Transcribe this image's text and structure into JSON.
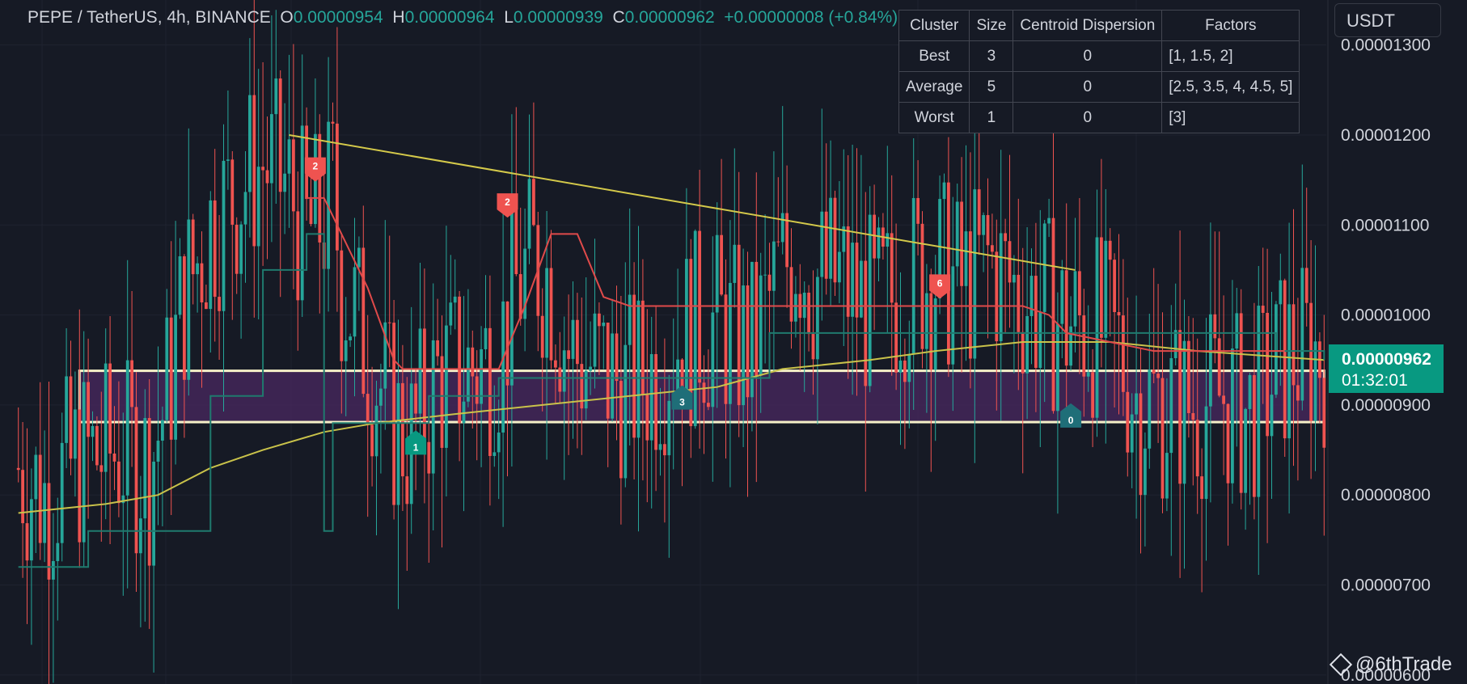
{
  "legend": {
    "symbol": "PEPE / TetherUS, 4h, BINANCE",
    "o_label": "O",
    "o_value": "0.00000954",
    "h_label": "H",
    "h_value": "0.00000964",
    "l_label": "L",
    "l_value": "0.00000939",
    "c_label": "C",
    "c_value": "0.00000962",
    "change": "+0.00000008 (+0.84%)"
  },
  "table": {
    "headers": [
      "Cluster",
      "Size",
      "Centroid Dispersion",
      "Factors"
    ],
    "rows": [
      [
        "Best",
        "3",
        "0",
        "[1, 1.5, 2]"
      ],
      [
        "Average",
        "5",
        "0",
        "[2.5, 3.5, 4, 4.5, 5]"
      ],
      [
        "Worst",
        "1",
        "0",
        "[3]"
      ]
    ]
  },
  "currency": "USDT",
  "price_tag": {
    "price": "0.00000962",
    "countdown": "01:32:01"
  },
  "watermark": "@6thTrade",
  "colors": {
    "background": "#161a25",
    "up": "#26a69a",
    "down": "#ef5350",
    "trend_line": "#d4c94a",
    "zone_fill": "#4a2860",
    "zone_border": "#f5f0c8",
    "ma_line": "#c9c24a",
    "supertrend_bear": "#e04a4a",
    "supertrend_bull": "#1f7a6e"
  },
  "chart_data": {
    "type": "candlestick",
    "y_axis": {
      "ticks": [
        "0.00001300",
        "0.00001200",
        "0.00001100",
        "0.00001000",
        "0.00000900",
        "0.00000800",
        "0.00000700",
        "0.00000600"
      ],
      "tick_values": [
        1.3e-05,
        1.2e-05,
        1.1e-05,
        1e-05,
        9e-06,
        8e-06,
        7e-06,
        6e-06
      ],
      "ylim": [
        5.9e-06,
        1.35e-05
      ]
    },
    "grid": true,
    "bars": 300,
    "close_path": [
      [
        0,
        8.3e-06
      ],
      [
        6,
        8e-06
      ],
      [
        14,
        8.4e-06
      ],
      [
        24,
        8.5e-06
      ],
      [
        30,
        8.3e-06
      ],
      [
        34,
        9.1e-06
      ],
      [
        38,
        1.02e-05
      ],
      [
        44,
        1.1e-05
      ],
      [
        52,
        1.15e-05
      ],
      [
        56,
        1.17e-05
      ],
      [
        62,
        1.14e-05
      ],
      [
        66,
        1.09e-05
      ],
      [
        70,
        1.11e-05
      ],
      [
        72,
        1.14e-05
      ],
      [
        74,
        1.04e-05
      ],
      [
        80,
        9.6e-06
      ],
      [
        86,
        8.8e-06
      ],
      [
        90,
        8.6e-06
      ],
      [
        96,
        9.3e-06
      ],
      [
        104,
        9.4e-06
      ],
      [
        110,
        9.6e-06
      ],
      [
        114,
        1.03e-05
      ],
      [
        118,
        1.06e-05
      ],
      [
        122,
        1.04e-05
      ],
      [
        126,
        9.6e-06
      ],
      [
        132,
        9.4e-06
      ],
      [
        140,
        9.2e-06
      ],
      [
        146,
        9.4e-06
      ],
      [
        152,
        9.8e-06
      ],
      [
        160,
        9.9e-06
      ],
      [
        168,
        9.6e-06
      ],
      [
        174,
        1.04e-05
      ],
      [
        178,
        1.08e-05
      ],
      [
        182,
        1.04e-05
      ],
      [
        188,
        1.04e-05
      ],
      [
        196,
        1e-05
      ],
      [
        204,
        1.04e-05
      ],
      [
        210,
        1.05e-05
      ],
      [
        216,
        1.03e-05
      ],
      [
        222,
        1.06e-05
      ],
      [
        228,
        1.03e-05
      ],
      [
        234,
        1.01e-05
      ],
      [
        240,
        9.9e-06
      ],
      [
        246,
        9.9e-06
      ],
      [
        252,
        9.6e-06
      ],
      [
        256,
        9.1e-06
      ],
      [
        262,
        9e-06
      ],
      [
        270,
        9e-06
      ],
      [
        276,
        9.1e-06
      ],
      [
        282,
        8.9e-06
      ],
      [
        286,
        9.2e-06
      ],
      [
        290,
        9.5e-06
      ],
      [
        294,
        9.6e-06
      ],
      [
        299,
        9.6e-06
      ]
    ],
    "trend_line": {
      "from": [
        62,
        1.2e-05
      ],
      "to": [
        242,
        1.05e-05
      ]
    },
    "zone": {
      "from_bar": 14,
      "to_bar": 299,
      "top": 9.38e-06,
      "bottom": 8.81e-06
    },
    "moving_average": [
      [
        0,
        7.8e-06
      ],
      [
        20,
        7.9e-06
      ],
      [
        32,
        8e-06
      ],
      [
        44,
        8.3e-06
      ],
      [
        56,
        8.5e-06
      ],
      [
        70,
        8.7e-06
      ],
      [
        82,
        8.8e-06
      ],
      [
        100,
        8.9e-06
      ],
      [
        120,
        9e-06
      ],
      [
        140,
        9.1e-06
      ],
      [
        160,
        9.2e-06
      ],
      [
        175,
        9.4e-06
      ],
      [
        195,
        9.5e-06
      ],
      [
        210,
        9.6e-06
      ],
      [
        230,
        9.7e-06
      ],
      [
        250,
        9.7e-06
      ],
      [
        270,
        9.6e-06
      ],
      [
        299,
        9.5e-06
      ]
    ],
    "supertrend_bear": [
      [
        66,
        1.13e-05
      ],
      [
        70,
        1.13e-05
      ],
      [
        80,
        1.03e-05
      ],
      [
        86,
        9.5e-06
      ],
      [
        88,
        9.4e-06
      ],
      [
        100,
        9.4e-06
      ],
      [
        110,
        9.4e-06
      ],
      [
        116,
        1.01e-05
      ],
      [
        122,
        1.09e-05
      ],
      [
        128,
        1.09e-05
      ],
      [
        134,
        1.02e-05
      ],
      [
        140,
        1.01e-05
      ],
      [
        152,
        1.01e-05
      ],
      [
        160,
        1.01e-05
      ],
      [
        220,
        1.01e-05
      ],
      [
        224,
        1.01e-05
      ],
      [
        230,
        1.01e-05
      ],
      [
        236,
        1e-05
      ],
      [
        240,
        9.8e-06
      ],
      [
        250,
        9.7e-06
      ],
      [
        260,
        9.6e-06
      ],
      [
        270,
        9.6e-06
      ],
      [
        290,
        9.6e-06
      ]
    ],
    "supertrend_bull": [
      [
        0,
        7.2e-06
      ],
      [
        14,
        7.2e-06
      ],
      [
        16,
        7.6e-06
      ],
      [
        40,
        7.6e-06
      ],
      [
        44,
        9.1e-06
      ],
      [
        56,
        1.05e-05
      ],
      [
        66,
        1.09e-05
      ],
      [
        70,
        7.6e-06
      ],
      [
        72,
        8.8e-06
      ],
      [
        88,
        8.8e-06
      ],
      [
        94,
        9.1e-06
      ],
      [
        110,
        9.3e-06
      ],
      [
        160,
        9.3e-06
      ],
      [
        172,
        9.8e-06
      ],
      [
        220,
        9.8e-06
      ],
      [
        244,
        9.8e-06
      ],
      [
        288,
        9.6e-06
      ],
      [
        299,
        9.5e-06
      ]
    ],
    "markers": [
      {
        "label": "2",
        "bar": 68,
        "price": 1.15e-05,
        "color": "#ef5350",
        "dir": "down"
      },
      {
        "label": "2",
        "bar": 112,
        "price": 1.11e-05,
        "color": "#ef5350",
        "dir": "down"
      },
      {
        "label": "6",
        "bar": 211,
        "price": 1.02e-05,
        "color": "#ef5350",
        "dir": "down"
      },
      {
        "label": "1",
        "bar": 91,
        "price": 8.7e-06,
        "color": "#089981",
        "dir": "up"
      },
      {
        "label": "3",
        "bar": 152,
        "price": 9.2e-06,
        "color": "#1f6e78",
        "dir": "up"
      },
      {
        "label": "0",
        "bar": 241,
        "price": 9e-06,
        "color": "#1f6e78",
        "dir": "up"
      }
    ]
  }
}
